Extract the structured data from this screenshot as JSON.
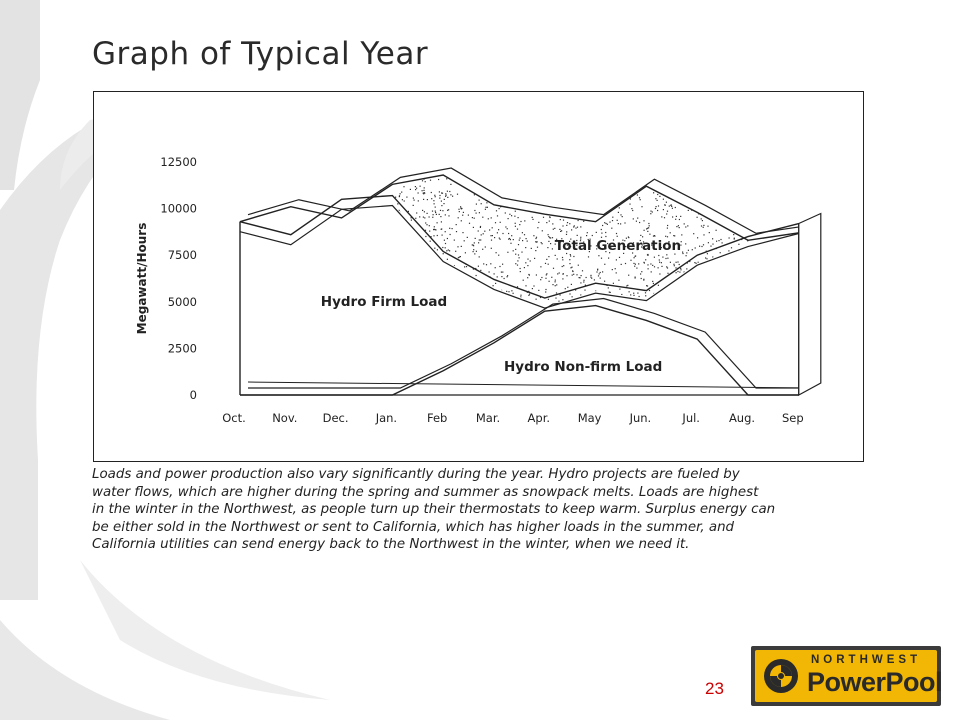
{
  "slide": {
    "title": "Graph of Typical Year",
    "page_number": "23",
    "caption_lines": [
      "Loads and power production also vary significantly during the year. Hydro projects are fueled by",
      "water flows, which are higher during the spring and summer as snowpack melts. Loads are highest",
      "in the winter in the Northwest, as people turn up their thermostats to keep warm. Surplus energy can",
      "be either sold in the Northwest or sent to California, which has higher loads in the summer, and",
      "California utilities can send energy back to the Northwest in the winter, when we need it."
    ]
  },
  "logo": {
    "top_text": "NORTHWEST",
    "bottom_text": "PowerPool",
    "colors": {
      "frame": "#3b3b3b",
      "fill": "#f2b705",
      "text": "#2a2a2a"
    }
  },
  "chart_data": {
    "type": "area",
    "title": "",
    "xlabel": "",
    "ylabel": "Megawatt/Hours",
    "ylim": [
      0,
      12500
    ],
    "yticks": [
      0,
      2500,
      5000,
      7500,
      10000,
      12500
    ],
    "categories": [
      "Oct.",
      "Nov.",
      "Dec.",
      "Jan.",
      "Feb",
      "Mar.",
      "Apr.",
      "May",
      "Jun.",
      "Jul.",
      "Aug.",
      "Sep"
    ],
    "series": [
      {
        "name": "Total Generation",
        "values": [
          9300,
          10100,
          9500,
          11300,
          11800,
          10200,
          9700,
          9300,
          11200,
          9800,
          8300,
          8700
        ],
        "style": "stippled"
      },
      {
        "name": "Hydro Firm Load",
        "values": [
          9300,
          8600,
          10500,
          10700,
          7700,
          6200,
          5200,
          6000,
          5600,
          7500,
          8500,
          9200
        ],
        "style": "outline"
      },
      {
        "name": "Hydro Non-firm Load",
        "values": [
          0,
          0,
          0,
          0,
          1300,
          2800,
          4500,
          4800,
          4000,
          3000,
          0,
          0
        ],
        "style": "outline"
      }
    ],
    "legend": "inline-labels",
    "grid": false,
    "style": "3d-ribbon",
    "colors": {
      "ink": "#222222",
      "stipple": "#333333",
      "background": "#ffffff"
    }
  }
}
